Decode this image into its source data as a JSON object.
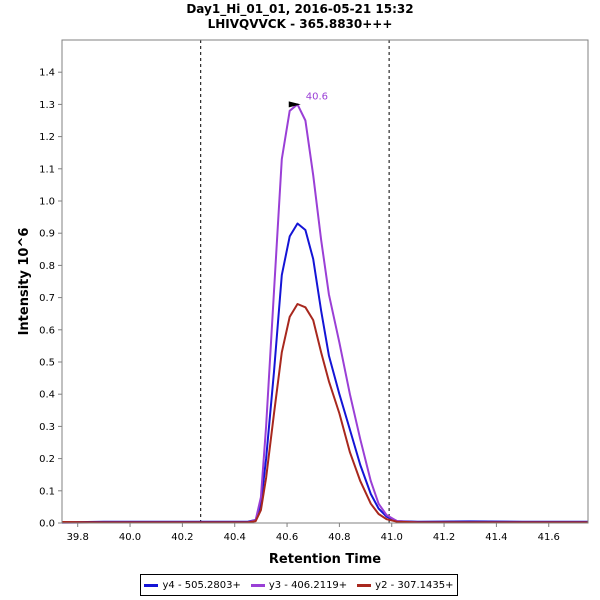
{
  "chart_data": {
    "type": "line",
    "title": "Day1_Hi_01_01, 2016-05-21 15:32",
    "subtitle": "LHIVQVVCK - 365.8830+++",
    "xlabel": "Retention Time",
    "ylabel": "Intensity 10^6",
    "xlim": [
      39.74,
      41.75
    ],
    "ylim": [
      0,
      1.5
    ],
    "xticks": [
      "39.8",
      "40.0",
      "40.2",
      "40.4",
      "40.6",
      "40.8",
      "41.0",
      "41.2",
      "41.4",
      "41.6"
    ],
    "xtick_values": [
      39.8,
      40.0,
      40.2,
      40.4,
      40.6,
      40.8,
      41.0,
      41.2,
      41.4,
      41.6
    ],
    "yticks": [
      "0.0",
      "0.1",
      "0.2",
      "0.3",
      "0.4",
      "0.5",
      "0.6",
      "0.7",
      "0.8",
      "0.9",
      "1.0",
      "1.1",
      "1.2",
      "1.3",
      "1.4"
    ],
    "ytick_values": [
      0.0,
      0.1,
      0.2,
      0.3,
      0.4,
      0.5,
      0.6,
      0.7,
      0.8,
      0.9,
      1.0,
      1.1,
      1.2,
      1.3,
      1.4
    ],
    "integration_bounds": [
      40.27,
      40.99
    ],
    "peak_annotation": {
      "label": "40.6",
      "x": 40.66,
      "y": 1.3,
      "color": "#9a3fd6"
    },
    "x": [
      39.74,
      39.9,
      40.0,
      40.2,
      40.4,
      40.45,
      40.48,
      40.5,
      40.52,
      40.55,
      40.58,
      40.61,
      40.64,
      40.67,
      40.7,
      40.73,
      40.76,
      40.8,
      40.84,
      40.88,
      40.92,
      40.95,
      40.98,
      41.02,
      41.1,
      41.3,
      41.5,
      41.75
    ],
    "series": [
      {
        "name": "y4 - 505.2803+",
        "color": "#1414d6",
        "values": [
          0.002,
          0.004,
          0.004,
          0.004,
          0.004,
          0.004,
          0.01,
          0.06,
          0.2,
          0.47,
          0.77,
          0.89,
          0.93,
          0.91,
          0.82,
          0.66,
          0.52,
          0.4,
          0.29,
          0.18,
          0.09,
          0.045,
          0.02,
          0.006,
          0.004,
          0.005,
          0.004,
          0.004
        ]
      },
      {
        "name": "y3 - 406.2119+",
        "color": "#9a3fd6",
        "values": [
          0.001,
          0.002,
          0.002,
          0.002,
          0.002,
          0.002,
          0.01,
          0.08,
          0.3,
          0.72,
          1.13,
          1.28,
          1.3,
          1.25,
          1.08,
          0.88,
          0.71,
          0.56,
          0.4,
          0.26,
          0.13,
          0.06,
          0.025,
          0.006,
          0.002,
          0.002,
          0.002,
          0.002
        ]
      },
      {
        "name": "y2 - 307.1435+",
        "color": "#a8281e",
        "values": [
          0.003,
          0.002,
          0.002,
          0.002,
          0.002,
          0.002,
          0.006,
          0.04,
          0.14,
          0.34,
          0.53,
          0.64,
          0.68,
          0.67,
          0.63,
          0.53,
          0.44,
          0.34,
          0.22,
          0.13,
          0.06,
          0.028,
          0.012,
          0.004,
          0.002,
          0.002,
          0.002,
          0.002
        ]
      }
    ]
  }
}
